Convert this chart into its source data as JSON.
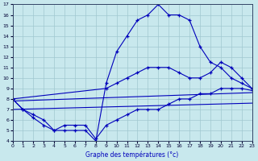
{
  "title": "Graphe des températures (°c)",
  "bg_color": "#c8e8ed",
  "line_color": "#0000bb",
  "xlim": [
    0,
    23
  ],
  "ylim": [
    4,
    17
  ],
  "xtick_labels": [
    "0",
    "1",
    "2",
    "3",
    "4",
    "5",
    "6",
    "7",
    "8",
    "9",
    "10",
    "11",
    "12",
    "13",
    "14",
    "15",
    "16",
    "17",
    "18",
    "19",
    "20",
    "21",
    "22",
    "23"
  ],
  "xticks": [
    0,
    1,
    2,
    3,
    4,
    5,
    6,
    7,
    8,
    9,
    10,
    11,
    12,
    13,
    14,
    15,
    16,
    17,
    18,
    19,
    20,
    21,
    22,
    23
  ],
  "yticks": [
    4,
    5,
    6,
    7,
    8,
    9,
    10,
    11,
    12,
    13,
    14,
    15,
    16,
    17
  ],
  "grid_color": "#a0c8d0",
  "curve_main_x": [
    0,
    1,
    2,
    3,
    4,
    5,
    6,
    7,
    8,
    9,
    10,
    11,
    12,
    13,
    14,
    15,
    16,
    17,
    18,
    19,
    20,
    21,
    22,
    23
  ],
  "curve_main_y": [
    8,
    7,
    6.5,
    6,
    5,
    5,
    5,
    5,
    4,
    9.5,
    12.5,
    14,
    15.5,
    16,
    17,
    16,
    16,
    15.5,
    13,
    11.5,
    11,
    10,
    9.5,
    9
  ],
  "curve_mid_x": [
    0,
    9,
    10,
    11,
    12,
    13,
    14,
    15,
    16,
    17,
    18,
    19,
    20,
    21,
    22,
    23
  ],
  "curve_mid_y": [
    8,
    9,
    9.5,
    10,
    10.5,
    11,
    11,
    11,
    10.5,
    10,
    10,
    10.5,
    11.5,
    11,
    10,
    9
  ],
  "curve_low_x": [
    0,
    1,
    2,
    3,
    4,
    5,
    6,
    7,
    8,
    9,
    10,
    11,
    12,
    13,
    14,
    15,
    16,
    17,
    18,
    19,
    20,
    21,
    22,
    23
  ],
  "curve_low_y": [
    8,
    7,
    6.2,
    5.5,
    5,
    5.5,
    5.5,
    5.5,
    4.2,
    5.5,
    6,
    6.5,
    7,
    7,
    7,
    7.5,
    8,
    8,
    8.5,
    8.5,
    9,
    9,
    9,
    8.8
  ],
  "line1_x": [
    0,
    23
  ],
  "line1_y": [
    7.8,
    8.6
  ],
  "line2_x": [
    0,
    23
  ],
  "line2_y": [
    7.0,
    7.6
  ]
}
